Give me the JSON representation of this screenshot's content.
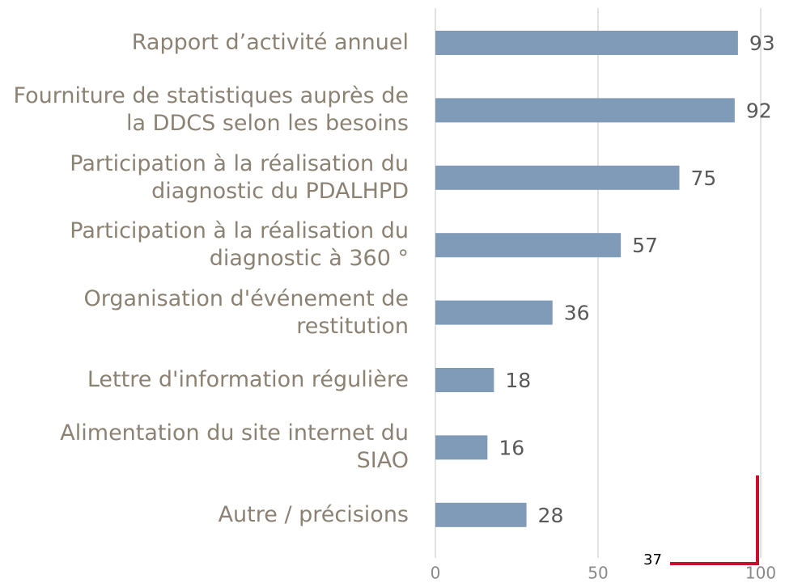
{
  "chart_data": {
    "type": "bar",
    "orientation": "horizontal",
    "categories": [
      "Rapport d’activité annuel",
      "Fourniture de statistiques auprès de la DDCS selon les besoins",
      "Participation à la réalisation du diagnostic du PDALHPD",
      "Participation à la réalisation du diagnostic à 360 °",
      "Organisation d'événement de restitution",
      "Lettre d'information régulière",
      "Alimentation du site internet du SIAO",
      "Autre / précisions"
    ],
    "values": [
      93,
      92,
      75,
      57,
      36,
      18,
      16,
      28
    ],
    "color": "#7f9bb8",
    "xlim": [
      0,
      100
    ],
    "xticks": [
      0,
      50,
      100
    ],
    "grid": true,
    "annotation": "37"
  }
}
